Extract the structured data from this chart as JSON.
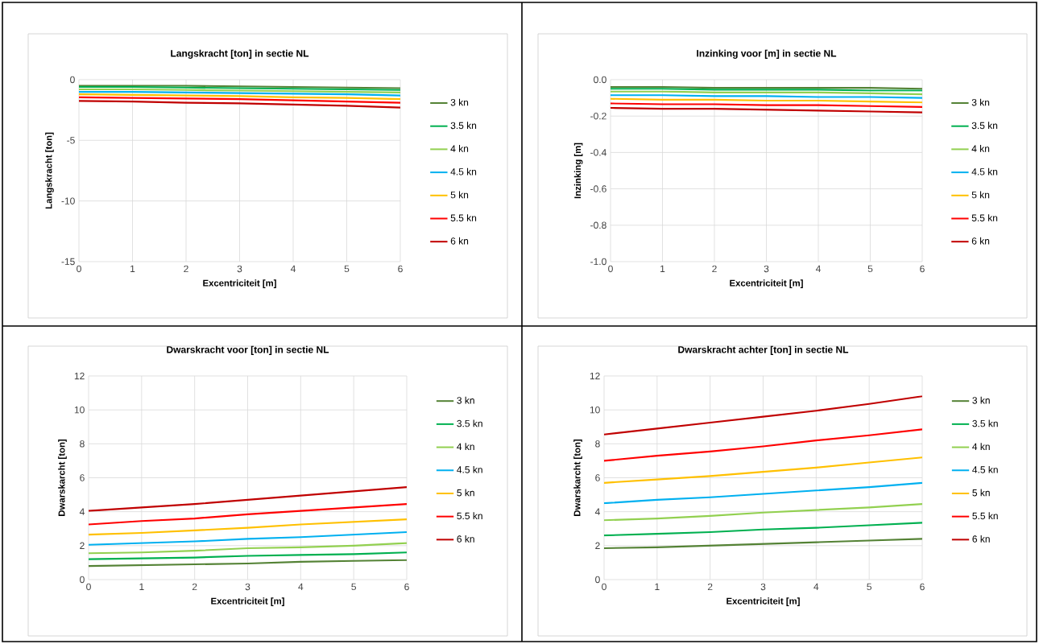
{
  "chart_data": [
    {
      "type": "line",
      "title": "Langskracht [ton] in sectie NL",
      "xlabel": "Excentriciteit [m]",
      "ylabel": "Langskracht [ton]",
      "x": [
        0,
        1,
        2,
        3,
        4,
        5,
        6
      ],
      "xlim": [
        0,
        6
      ],
      "ylim": [
        -15,
        0
      ],
      "xticks": [
        0,
        1,
        2,
        3,
        4,
        5,
        6
      ],
      "yticks": [
        -15,
        -10,
        -5,
        0
      ],
      "grid": true,
      "legend": "right",
      "series": [
        {
          "name": "3 kn",
          "color": "#548235",
          "values": [
            -0.5,
            -0.5,
            -0.5,
            -0.55,
            -0.6,
            -0.65,
            -0.7
          ]
        },
        {
          "name": "3.5 kn",
          "color": "#00b050",
          "values": [
            -0.6,
            -0.6,
            -0.65,
            -0.7,
            -0.75,
            -0.8,
            -0.85
          ]
        },
        {
          "name": "4 kn",
          "color": "#92d050",
          "values": [
            -0.8,
            -0.8,
            -0.85,
            -0.9,
            -0.95,
            -1.0,
            -1.05
          ]
        },
        {
          "name": "4.5 kn",
          "color": "#00b0f0",
          "values": [
            -1.0,
            -1.0,
            -1.05,
            -1.1,
            -1.15,
            -1.2,
            -1.3
          ]
        },
        {
          "name": "5 kn",
          "color": "#ffc000",
          "values": [
            -1.2,
            -1.25,
            -1.3,
            -1.35,
            -1.45,
            -1.5,
            -1.6
          ]
        },
        {
          "name": "5.5 kn",
          "color": "#ff0000",
          "values": [
            -1.45,
            -1.5,
            -1.55,
            -1.6,
            -1.7,
            -1.8,
            -1.9
          ]
        },
        {
          "name": "6 kn",
          "color": "#c00000",
          "values": [
            -1.75,
            -1.8,
            -1.9,
            -1.95,
            -2.05,
            -2.15,
            -2.3
          ]
        }
      ]
    },
    {
      "type": "line",
      "title": "Inzinking voor [m] in sectie NL",
      "xlabel": "Excentriciteit [m]",
      "ylabel": "Inzinking [m]",
      "x": [
        0,
        1,
        2,
        3,
        4,
        5,
        6
      ],
      "xlim": [
        0,
        6
      ],
      "ylim": [
        -1.0,
        0.0
      ],
      "xticks": [
        0,
        1,
        2,
        3,
        4,
        5,
        6
      ],
      "yticks": [
        {
          "value": -1.0,
          "label": "-1.0"
        },
        {
          "value": -0.8,
          "label": "-0.8"
        },
        {
          "value": -0.6,
          "label": "-0.6"
        },
        {
          "value": -0.4,
          "label": "-0.4"
        },
        {
          "value": -0.2,
          "label": "-0.2"
        },
        {
          "value": 0.0,
          "label": "0.0"
        }
      ],
      "grid": true,
      "legend": "right",
      "series": [
        {
          "name": "3 kn",
          "color": "#548235",
          "values": [
            -0.04,
            -0.04,
            -0.045,
            -0.045,
            -0.045,
            -0.045,
            -0.05
          ]
        },
        {
          "name": "3.5 kn",
          "color": "#00b050",
          "values": [
            -0.05,
            -0.05,
            -0.055,
            -0.055,
            -0.055,
            -0.06,
            -0.06
          ]
        },
        {
          "name": "4 kn",
          "color": "#92d050",
          "values": [
            -0.065,
            -0.065,
            -0.07,
            -0.07,
            -0.07,
            -0.075,
            -0.08
          ]
        },
        {
          "name": "4.5 kn",
          "color": "#00b0f0",
          "values": [
            -0.085,
            -0.085,
            -0.09,
            -0.09,
            -0.095,
            -0.095,
            -0.1
          ]
        },
        {
          "name": "5 kn",
          "color": "#ffc000",
          "values": [
            -0.105,
            -0.11,
            -0.11,
            -0.115,
            -0.115,
            -0.12,
            -0.125
          ]
        },
        {
          "name": "5.5 kn",
          "color": "#ff0000",
          "values": [
            -0.13,
            -0.135,
            -0.135,
            -0.14,
            -0.14,
            -0.145,
            -0.15
          ]
        },
        {
          "name": "6 kn",
          "color": "#c00000",
          "values": [
            -0.155,
            -0.16,
            -0.16,
            -0.165,
            -0.17,
            -0.175,
            -0.18
          ]
        }
      ]
    },
    {
      "type": "line",
      "title": "Dwarskracht voor [ton]  in sectie NL",
      "xlabel": "Excentriciteit [m]",
      "ylabel": "Dwarskarcht [ton]",
      "x": [
        0,
        1,
        2,
        3,
        4,
        5,
        6
      ],
      "xlim": [
        0,
        6
      ],
      "ylim": [
        0,
        12
      ],
      "xticks": [
        0,
        1,
        2,
        3,
        4,
        5,
        6
      ],
      "yticks": [
        0,
        2,
        4,
        6,
        8,
        10,
        12
      ],
      "grid": true,
      "legend": "right",
      "series": [
        {
          "name": "3 kn",
          "color": "#548235",
          "values": [
            0.8,
            0.85,
            0.9,
            0.95,
            1.05,
            1.1,
            1.15
          ]
        },
        {
          "name": "3.5 kn",
          "color": "#00b050",
          "values": [
            1.2,
            1.25,
            1.3,
            1.4,
            1.45,
            1.5,
            1.6
          ]
        },
        {
          "name": "4 kn",
          "color": "#92d050",
          "values": [
            1.55,
            1.6,
            1.7,
            1.85,
            1.9,
            2.0,
            2.15
          ]
        },
        {
          "name": "4.5 kn",
          "color": "#00b0f0",
          "values": [
            2.05,
            2.15,
            2.25,
            2.4,
            2.5,
            2.65,
            2.8
          ]
        },
        {
          "name": "5 kn",
          "color": "#ffc000",
          "values": [
            2.65,
            2.75,
            2.9,
            3.05,
            3.25,
            3.4,
            3.55
          ]
        },
        {
          "name": "5.5 kn",
          "color": "#ff0000",
          "values": [
            3.25,
            3.45,
            3.6,
            3.85,
            4.05,
            4.25,
            4.45
          ]
        },
        {
          "name": "6 kn",
          "color": "#c00000",
          "values": [
            4.05,
            4.25,
            4.45,
            4.7,
            4.95,
            5.2,
            5.45
          ]
        }
      ]
    },
    {
      "type": "line",
      "title": "Dwarskracht achter [ton] in sectie NL",
      "xlabel": "Excentriciteit [m]",
      "ylabel": "Dwarskarcht [ton]",
      "x": [
        0,
        1,
        2,
        3,
        4,
        5,
        6
      ],
      "xlim": [
        0,
        6
      ],
      "ylim": [
        0,
        12
      ],
      "xticks": [
        0,
        1,
        2,
        3,
        4,
        5,
        6
      ],
      "yticks": [
        0,
        2,
        4,
        6,
        8,
        10,
        12
      ],
      "grid": true,
      "legend": "right",
      "series": [
        {
          "name": "3 kn",
          "color": "#548235",
          "values": [
            1.85,
            1.9,
            2.0,
            2.1,
            2.2,
            2.3,
            2.4
          ]
        },
        {
          "name": "3.5 kn",
          "color": "#00b050",
          "values": [
            2.6,
            2.7,
            2.8,
            2.95,
            3.05,
            3.2,
            3.35
          ]
        },
        {
          "name": "4 kn",
          "color": "#92d050",
          "values": [
            3.5,
            3.6,
            3.75,
            3.95,
            4.1,
            4.25,
            4.45
          ]
        },
        {
          "name": "4.5 kn",
          "color": "#00b0f0",
          "values": [
            4.5,
            4.7,
            4.85,
            5.05,
            5.25,
            5.45,
            5.7
          ]
        },
        {
          "name": "5 kn",
          "color": "#ffc000",
          "values": [
            5.7,
            5.9,
            6.1,
            6.35,
            6.6,
            6.9,
            7.2
          ]
        },
        {
          "name": "5.5 kn",
          "color": "#ff0000",
          "values": [
            7.0,
            7.3,
            7.55,
            7.85,
            8.2,
            8.5,
            8.85
          ]
        },
        {
          "name": "6 kn",
          "color": "#c00000",
          "values": [
            8.55,
            8.9,
            9.25,
            9.6,
            9.95,
            10.35,
            10.8
          ]
        }
      ]
    }
  ]
}
